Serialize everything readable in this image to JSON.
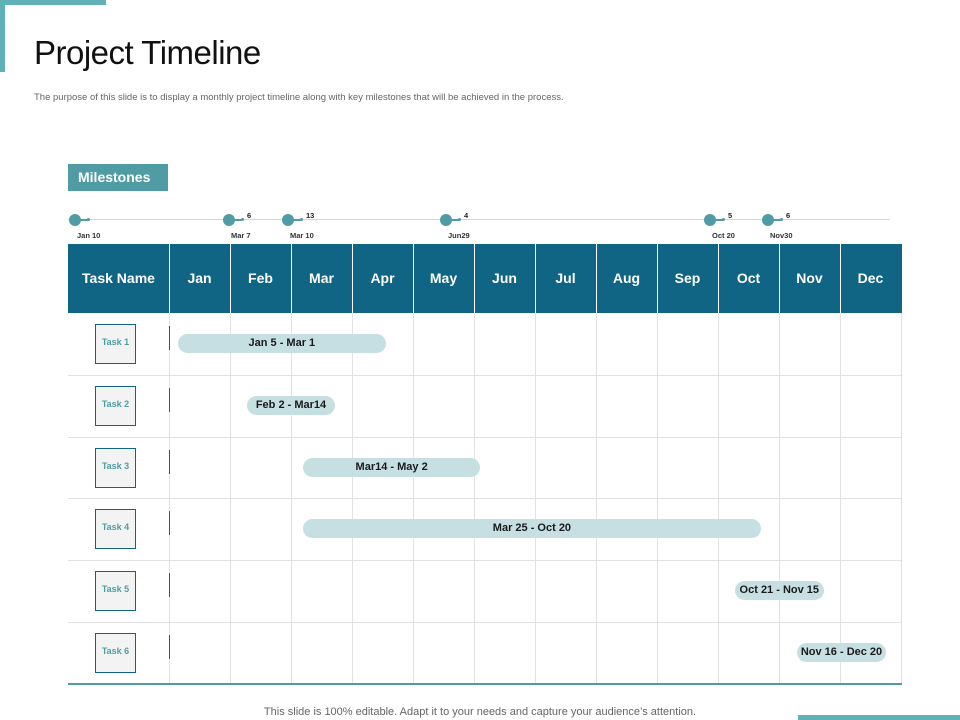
{
  "title": "Project Timeline",
  "subtitle": "The purpose of this slide is to display a monthly project timeline  along with key milestones that will be achieved in the process.",
  "milestones_label": "Milestones",
  "milestones": [
    {
      "num": "",
      "date": "Jan 10"
    },
    {
      "num": "6",
      "date": "Mar 7"
    },
    {
      "num": "13",
      "date": "Mar 10"
    },
    {
      "num": "4",
      "date": "Jun29"
    },
    {
      "num": "5",
      "date": "Oct 20"
    },
    {
      "num": "6",
      "date": "Nov30"
    }
  ],
  "header": {
    "task_name": "Task Name",
    "months": [
      "Jan",
      "Feb",
      "Mar",
      "Apr",
      "May",
      "Jun",
      "Jul",
      "Aug",
      "Sep",
      "Oct",
      "Nov",
      "Dec"
    ]
  },
  "tasks": [
    {
      "name": "Task 1",
      "range": "Jan 5 - Mar 1",
      "start_month": 0.15,
      "end_month": 3.55
    },
    {
      "name": "Task 2",
      "range": "Feb 2 - Mar14",
      "start_month": 1.28,
      "end_month": 2.72
    },
    {
      "name": "Task 3",
      "range": "Mar14 - May 2",
      "start_month": 2.2,
      "end_month": 5.1
    },
    {
      "name": "Task 4",
      "range": "Mar 25 - Oct 20",
      "start_month": 2.2,
      "end_month": 9.7
    },
    {
      "name": "Task 5",
      "range": "Oct 21 - Nov 15",
      "start_month": 9.28,
      "end_month": 10.73
    },
    {
      "name": "Task 6",
      "range": "Nov 16 - Dec 20",
      "start_month": 10.3,
      "end_month": 11.75
    }
  ],
  "footer": "This slide is 100% editable. Adapt it to your needs and capture your audience’s attention."
}
